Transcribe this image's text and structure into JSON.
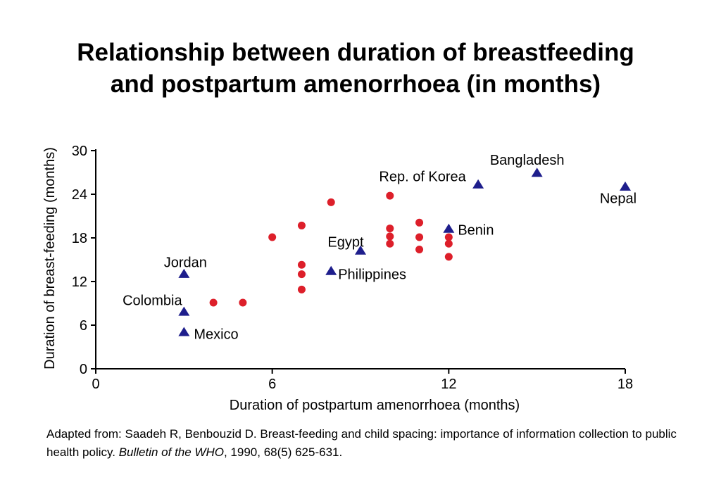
{
  "title": {
    "line1": "Relationship between duration of breastfeeding",
    "line2": "and postpartum amenorrhoea (in months)"
  },
  "chart_data": {
    "type": "scatter",
    "title": "Relationship between duration of breastfeeding and postpartum amenorrhoea (in months)",
    "xlabel": "Duration of postpartum amenorrhoea (months)",
    "ylabel": "Duration of breast-feeding (months)",
    "xlim": [
      0,
      18
    ],
    "ylim": [
      0,
      30
    ],
    "x_ticks": [
      "0",
      "6",
      "12",
      "18"
    ],
    "y_ticks": [
      "0",
      "6",
      "12",
      "18",
      "24",
      "30"
    ],
    "grid": false,
    "series": [
      {
        "marker": "triangle",
        "color": "#1e1e8c",
        "points": [
          {
            "x": 3,
            "y": 13,
            "label": "Jordan"
          },
          {
            "x": 3,
            "y": 7.8,
            "label": "Colombia"
          },
          {
            "x": 3,
            "y": 5,
            "label": "Mexico"
          },
          {
            "x": 8,
            "y": 13.4,
            "label": "Philippines"
          },
          {
            "x": 9,
            "y": 16.2,
            "label": "Egypt"
          },
          {
            "x": 12,
            "y": 19.2,
            "label": "Benin"
          },
          {
            "x": 13,
            "y": 25.3,
            "label": "Rep. of Korea"
          },
          {
            "x": 15,
            "y": 26.9,
            "label": "Bangladesh"
          },
          {
            "x": 18,
            "y": 25,
            "label": "Nepal"
          }
        ]
      },
      {
        "marker": "circle",
        "color": "#dd1f2a",
        "points": [
          {
            "x": 4,
            "y": 9.1
          },
          {
            "x": 5,
            "y": 9.1
          },
          {
            "x": 6,
            "y": 18.1
          },
          {
            "x": 7,
            "y": 19.7
          },
          {
            "x": 7,
            "y": 14.3
          },
          {
            "x": 7,
            "y": 13
          },
          {
            "x": 7,
            "y": 10.9
          },
          {
            "x": 8,
            "y": 22.9
          },
          {
            "x": 10,
            "y": 23.8
          },
          {
            "x": 10,
            "y": 19.3
          },
          {
            "x": 10,
            "y": 18.2
          },
          {
            "x": 10,
            "y": 17.2
          },
          {
            "x": 11,
            "y": 20.1
          },
          {
            "x": 11,
            "y": 18.1
          },
          {
            "x": 11,
            "y": 16.4
          },
          {
            "x": 12,
            "y": 18.1
          },
          {
            "x": 12,
            "y": 17.2
          },
          {
            "x": 12,
            "y": 15.4
          }
        ]
      }
    ]
  },
  "source": {
    "prefix": "Adapted from: Saadeh R, Benbouzid D. Breast-feeding and child spacing: importance of information collection to public health policy.  ",
    "journal": "Bulletin of the WHO",
    "suffix": ", 1990, 68(5) 625-631."
  }
}
